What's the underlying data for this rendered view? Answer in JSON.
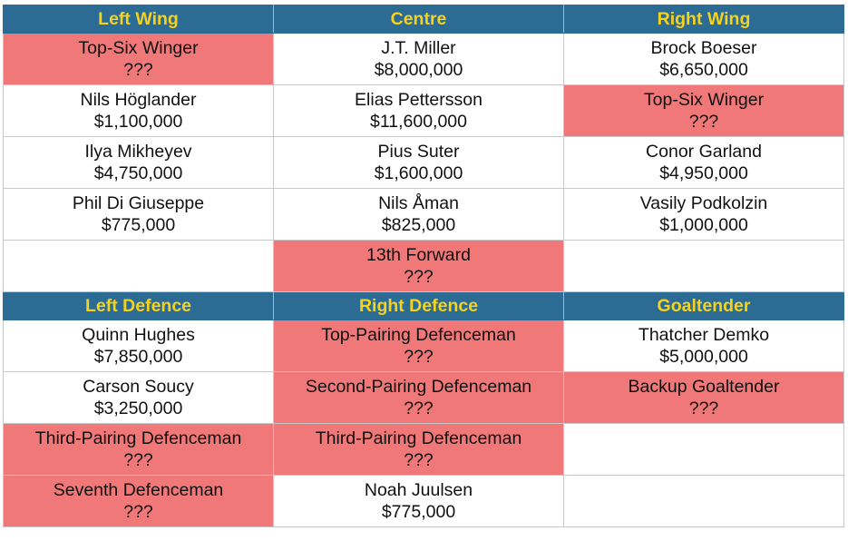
{
  "colors": {
    "header_bg": "#2c6b94",
    "header_text": "#f6d21d",
    "vacant_bg": "#f07878"
  },
  "forwards": {
    "headers": [
      "Left Wing",
      "Centre",
      "Right Wing"
    ],
    "rows": [
      [
        {
          "name": "Top-Six Winger",
          "salary": "???",
          "vacant": true
        },
        {
          "name": "J.T. Miller",
          "salary": "$8,000,000",
          "vacant": false
        },
        {
          "name": "Brock Boeser",
          "salary": "$6,650,000",
          "vacant": false
        }
      ],
      [
        {
          "name": "Nils Höglander",
          "salary": "$1,100,000",
          "vacant": false
        },
        {
          "name": "Elias Pettersson",
          "salary": "$11,600,000",
          "vacant": false
        },
        {
          "name": "Top-Six Winger",
          "salary": "???",
          "vacant": true
        }
      ],
      [
        {
          "name": "Ilya Mikheyev",
          "salary": "$4,750,000",
          "vacant": false
        },
        {
          "name": "Pius Suter",
          "salary": "$1,600,000",
          "vacant": false
        },
        {
          "name": "Conor Garland",
          "salary": "$4,950,000",
          "vacant": false
        }
      ],
      [
        {
          "name": "Phil Di Giuseppe",
          "salary": "$775,000",
          "vacant": false
        },
        {
          "name": "Nils Åman",
          "salary": "$825,000",
          "vacant": false
        },
        {
          "name": "Vasily Podkolzin",
          "salary": "$1,000,000",
          "vacant": false
        }
      ],
      [
        null,
        {
          "name": "13th Forward",
          "salary": "???",
          "vacant": true
        },
        null
      ]
    ]
  },
  "defence": {
    "headers": [
      "Left Defence",
      "Right Defence",
      "Goaltender"
    ],
    "rows": [
      [
        {
          "name": "Quinn Hughes",
          "salary": "$7,850,000",
          "vacant": false
        },
        {
          "name": "Top-Pairing Defenceman",
          "salary": "???",
          "vacant": true
        },
        {
          "name": "Thatcher Demko",
          "salary": "$5,000,000",
          "vacant": false
        }
      ],
      [
        {
          "name": "Carson Soucy",
          "salary": "$3,250,000",
          "vacant": false
        },
        {
          "name": "Second-Pairing Defenceman",
          "salary": "???",
          "vacant": true
        },
        {
          "name": "Backup Goaltender",
          "salary": "???",
          "vacant": true
        }
      ],
      [
        {
          "name": "Third-Pairing Defenceman",
          "salary": "???",
          "vacant": true
        },
        {
          "name": "Third-Pairing Defenceman",
          "salary": "???",
          "vacant": true
        },
        null
      ],
      [
        {
          "name": "Seventh Defenceman",
          "salary": "???",
          "vacant": true
        },
        {
          "name": "Noah Juulsen",
          "salary": "$775,000",
          "vacant": false
        },
        null
      ]
    ]
  }
}
